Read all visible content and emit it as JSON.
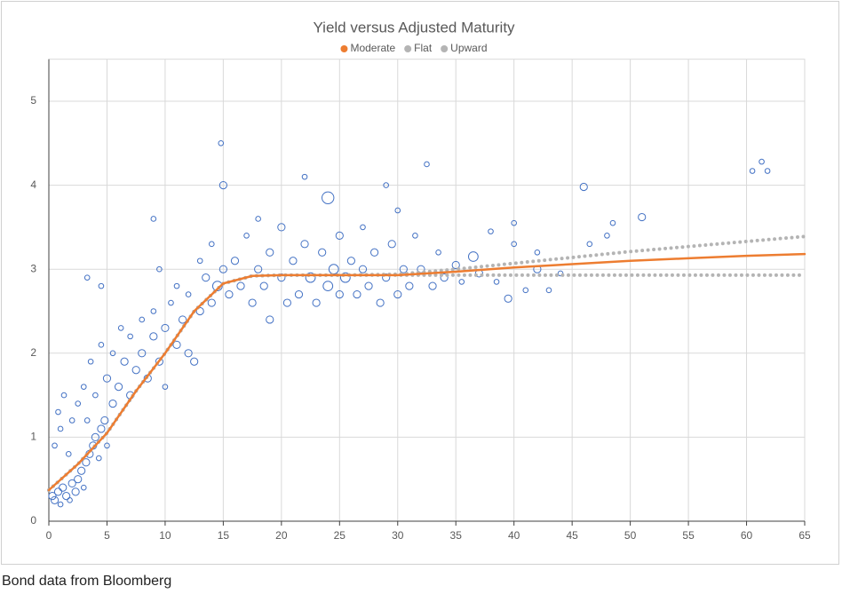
{
  "chart_data": {
    "type": "scatter",
    "title": "Yield versus Adjusted Maturity",
    "xlim": [
      0,
      65
    ],
    "xticks": [
      0,
      5,
      10,
      15,
      20,
      25,
      30,
      35,
      40,
      45,
      50,
      55,
      60,
      65
    ],
    "ylim": [
      0,
      5.5
    ],
    "yticks": [
      0,
      1,
      2,
      3,
      4,
      5
    ],
    "grid": true,
    "legend": "top",
    "bubbles": {
      "color": "#4472c4",
      "x": [
        0.3,
        0.5,
        0.8,
        1,
        1.2,
        1.5,
        1.8,
        2,
        2.3,
        2.5,
        2.8,
        3,
        3.2,
        3.5,
        3.8,
        4,
        4.3,
        4.5,
        4.8,
        5,
        0.5,
        0.8,
        1,
        1.3,
        1.7,
        2,
        2.5,
        3,
        3.3,
        3.6,
        4,
        4.5,
        5,
        5.5,
        5.5,
        6,
        6.2,
        6.5,
        7,
        7,
        7.5,
        8,
        8,
        8.5,
        9,
        9,
        9.5,
        10,
        10,
        10.5,
        11,
        11,
        11.5,
        12,
        12,
        12.5,
        13,
        13,
        13.5,
        14,
        14,
        14.5,
        14.8,
        15,
        15,
        15.5,
        16,
        16.5,
        17,
        17.5,
        18,
        18,
        18.5,
        19,
        19,
        20,
        20,
        20.5,
        21,
        21.5,
        22,
        22,
        22.5,
        23,
        23.5,
        24,
        24,
        24.5,
        25,
        25,
        25.5,
        26,
        26.5,
        27,
        27,
        27.5,
        28,
        28.5,
        29,
        29,
        29.5,
        30,
        30,
        30.5,
        31,
        31.5,
        32,
        32.5,
        33,
        33.5,
        34,
        35,
        35.5,
        36.5,
        37,
        38,
        38.5,
        39.5,
        40,
        40,
        41,
        42,
        42,
        43,
        44,
        46,
        46.5,
        48,
        48.5,
        51,
        60.5,
        61.3,
        61.8,
        9,
        9.5,
        3.3,
        4.5
      ],
      "values": [
        0.3,
        0.25,
        0.35,
        0.2,
        0.4,
        0.3,
        0.25,
        0.45,
        0.35,
        0.5,
        0.6,
        0.4,
        0.7,
        0.8,
        0.9,
        1.0,
        0.75,
        1.1,
        1.2,
        0.9,
        0.9,
        1.3,
        1.1,
        1.5,
        0.8,
        1.2,
        1.4,
        1.6,
        1.2,
        1.9,
        1.5,
        2.1,
        1.7,
        1.4,
        2.0,
        1.6,
        2.3,
        1.9,
        1.5,
        2.2,
        1.8,
        2.0,
        2.4,
        1.7,
        2.2,
        2.5,
        1.9,
        2.3,
        1.6,
        2.6,
        2.1,
        2.8,
        2.4,
        2.0,
        2.7,
        1.9,
        2.5,
        3.1,
        2.9,
        2.6,
        3.3,
        2.8,
        4.5,
        3.0,
        4.0,
        2.7,
        3.1,
        2.8,
        3.4,
        2.6,
        3.0,
        3.6,
        2.8,
        3.2,
        2.4,
        2.9,
        3.5,
        2.6,
        3.1,
        2.7,
        3.3,
        4.1,
        2.9,
        2.6,
        3.2,
        2.8,
        3.85,
        3.0,
        2.7,
        3.4,
        2.9,
        3.1,
        2.7,
        3.0,
        3.5,
        2.8,
        3.2,
        2.6,
        2.9,
        4.0,
        3.3,
        2.7,
        3.7,
        3.0,
        2.8,
        3.4,
        3.0,
        4.25,
        2.8,
        3.2,
        2.9,
        3.05,
        2.85,
        3.15,
        2.95,
        3.45,
        2.85,
        2.65,
        3.3,
        3.55,
        2.75,
        3.0,
        3.2,
        2.75,
        2.95,
        3.98,
        3.3,
        3.4,
        3.55,
        3.62,
        4.17,
        4.28,
        4.17,
        3.6,
        3.0,
        2.9,
        2.8
      ],
      "sizes": [
        2,
        2,
        2,
        1,
        2,
        2,
        1,
        2,
        2,
        2,
        2,
        1,
        2,
        2,
        2,
        2,
        1,
        2,
        2,
        1,
        1,
        1,
        1,
        1,
        1,
        1,
        1,
        1,
        1,
        1,
        1,
        1,
        2,
        2,
        1,
        2,
        1,
        2,
        2,
        1,
        2,
        2,
        1,
        2,
        2,
        1,
        2,
        2,
        1,
        1,
        2,
        1,
        2,
        2,
        1,
        2,
        2,
        1,
        2,
        2,
        1,
        3,
        1,
        2,
        2,
        2,
        2,
        2,
        1,
        2,
        2,
        1,
        2,
        2,
        2,
        2,
        2,
        2,
        2,
        2,
        2,
        1,
        3,
        2,
        2,
        3,
        4,
        3,
        2,
        2,
        3,
        2,
        2,
        2,
        1,
        2,
        2,
        2,
        2,
        1,
        2,
        2,
        1,
        2,
        2,
        1,
        2,
        1,
        2,
        1,
        2,
        2,
        1,
        3,
        2,
        1,
        1,
        2,
        1,
        1,
        1,
        2,
        1,
        1,
        1,
        2,
        1,
        1,
        1,
        2,
        1,
        1,
        1,
        1,
        1,
        1,
        1
      ]
    },
    "series": [
      {
        "name": "Flat",
        "color": "#b4b4b4",
        "line_style": "dotted",
        "x": [
          0,
          2.5,
          5,
          7.5,
          10,
          12.5,
          15,
          17.5,
          20,
          25,
          30,
          35,
          40,
          45,
          50,
          55,
          60,
          65
        ],
        "values": [
          0.37,
          0.68,
          1.05,
          1.55,
          2.0,
          2.5,
          2.83,
          2.92,
          2.93,
          2.93,
          2.93,
          2.93,
          2.93,
          2.93,
          2.93,
          2.93,
          2.93,
          2.93
        ]
      },
      {
        "name": "Upward",
        "color": "#b4b4b4",
        "line_style": "dotted",
        "x": [
          0,
          2.5,
          5,
          7.5,
          10,
          12.5,
          15,
          17.5,
          20,
          25,
          30,
          35,
          40,
          45,
          50,
          55,
          60,
          65
        ],
        "values": [
          0.37,
          0.68,
          1.05,
          1.55,
          2.0,
          2.5,
          2.83,
          2.92,
          2.93,
          2.93,
          2.94,
          3.0,
          3.07,
          3.14,
          3.21,
          3.27,
          3.33,
          3.39
        ]
      },
      {
        "name": "Moderate",
        "color": "#ed7d31",
        "line_style": "solid",
        "x": [
          0,
          2.5,
          5,
          7.5,
          10,
          12.5,
          15,
          17.5,
          20,
          25,
          30,
          35,
          40,
          45,
          50,
          55,
          60,
          65
        ],
        "values": [
          0.37,
          0.68,
          1.05,
          1.55,
          2.0,
          2.5,
          2.83,
          2.92,
          2.93,
          2.93,
          2.93,
          2.97,
          3.02,
          3.06,
          3.1,
          3.13,
          3.16,
          3.18
        ]
      }
    ]
  },
  "caption": "Bond data from Bloomberg"
}
